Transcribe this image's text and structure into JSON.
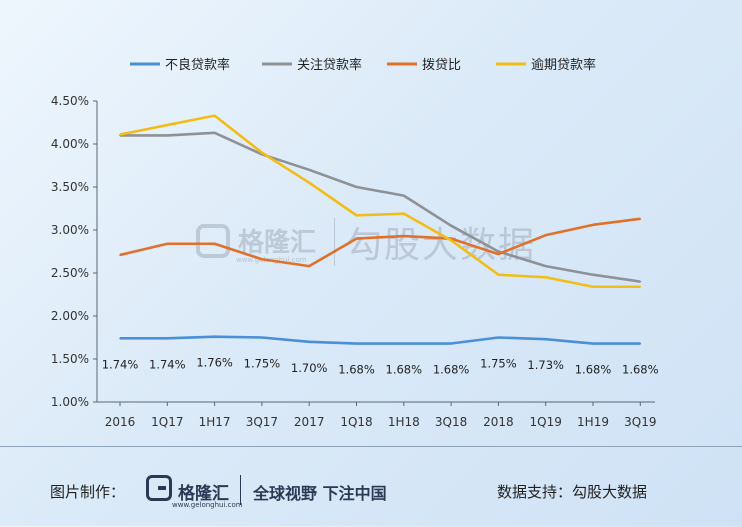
{
  "chart_data": {
    "type": "line",
    "categories": [
      "2016",
      "1Q17",
      "1H17",
      "3Q17",
      "2017",
      "1Q18",
      "1H18",
      "3Q18",
      "2018",
      "1Q19",
      "1H19",
      "3Q19"
    ],
    "y_ticks": [
      "4.50%",
      "4.00%",
      "3.50%",
      "3.00%",
      "2.50%",
      "2.00%",
      "1.50%",
      "1.00%"
    ],
    "ylim": [
      1.0,
      4.5
    ],
    "legend_position": "top",
    "series": [
      {
        "name": "不良贷款率",
        "color": "#4a8fd8",
        "values": [
          1.74,
          1.74,
          1.76,
          1.75,
          1.7,
          1.68,
          1.68,
          1.68,
          1.75,
          1.73,
          1.68,
          1.68
        ],
        "labels": [
          "1.74%",
          "1.74%",
          "1.76%",
          "1.75%",
          "1.70%",
          "1.68%",
          "1.68%",
          "1.68%",
          "1.75%",
          "1.73%",
          "1.68%",
          "1.68%"
        ]
      },
      {
        "name": "关注贷款率",
        "color": "#8e9196",
        "values": [
          4.1,
          4.1,
          4.13,
          3.88,
          3.7,
          3.5,
          3.4,
          3.05,
          2.75,
          2.58,
          2.48,
          2.4
        ]
      },
      {
        "name": "拨贷比",
        "color": "#e0702a",
        "values": [
          2.71,
          2.84,
          2.84,
          2.66,
          2.58,
          2.9,
          2.93,
          2.9,
          2.72,
          2.94,
          3.06,
          3.13
        ]
      },
      {
        "name": "逾期贷款率",
        "color": "#f2bd18",
        "values": [
          4.11,
          4.22,
          4.33,
          3.9,
          3.55,
          3.17,
          3.19,
          2.88,
          2.48,
          2.45,
          2.34,
          2.34
        ]
      }
    ]
  },
  "watermark": {
    "brand": "格隆汇",
    "brand_sub": "www.gelonghui.com",
    "brand2": "勾股大数据"
  },
  "footer": {
    "credit_label": "图片制作：",
    "brand": "格隆汇",
    "brand_sub": "www.gelonghui.com",
    "slogan": "全球视野 下注中国",
    "support_label": "数据支持：",
    "support_value": "勾股大数据"
  }
}
